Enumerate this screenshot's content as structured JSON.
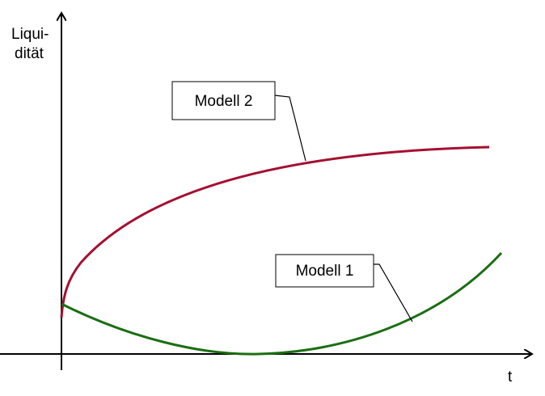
{
  "y_axis_label": [
    "Liqui-",
    "dität"
  ],
  "x_axis_label": "t",
  "callouts": [
    {
      "label": "Modell 2"
    },
    {
      "label": "Modell 1"
    }
  ]
}
